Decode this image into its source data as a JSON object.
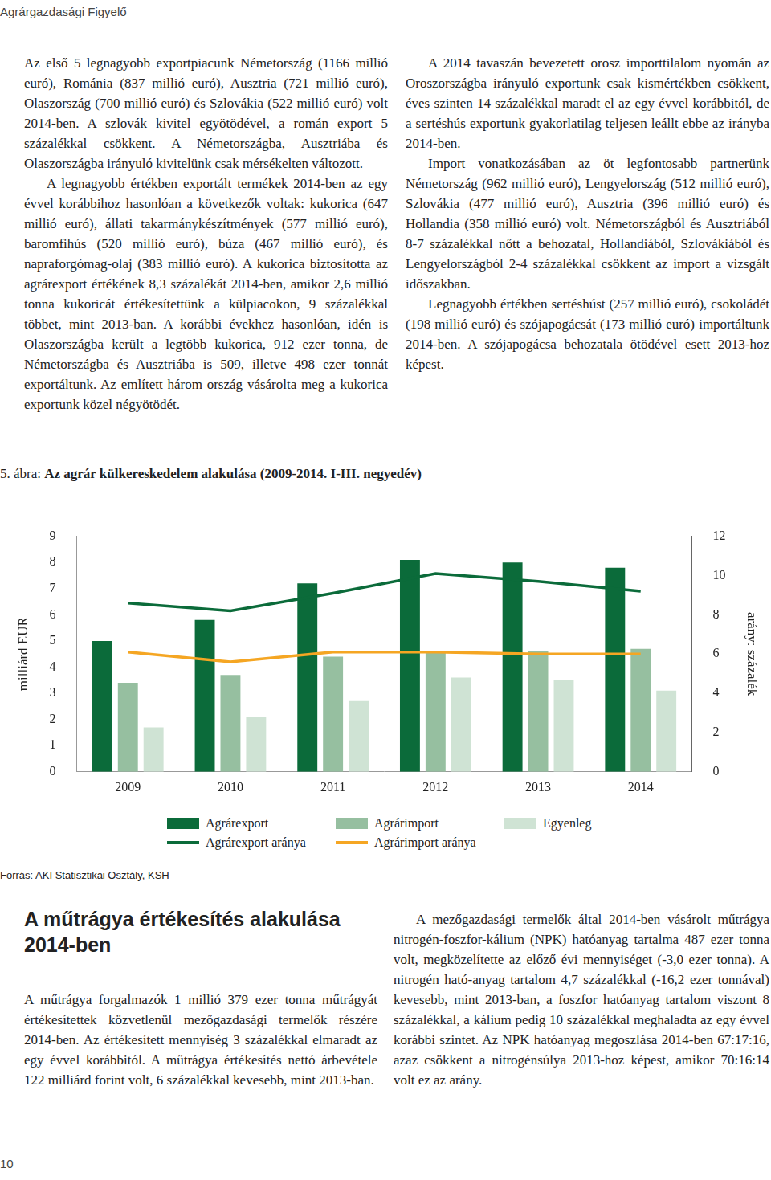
{
  "header": "Agrárgazdasági Figyelő",
  "top_text": {
    "paragraphs": [
      "Az első 5 legnagyobb exportpiacunk Németország (1166 millió euró), Románia (837 millió euró), Ausztria (721 millió euró), Olaszország (700 millió euró) és Szlovákia (522 millió euró) volt 2014-ben. A szlovák kivitel egyötödével, a román export 5 százalékkal csökkent. A Németországba, Ausztriába és Olaszországba irányuló kivitelünk csak mérsékelten változott.",
      "A legnagyobb értékben exportált termékek 2014-ben az egy évvel korábbihoz hasonlóan a következők voltak: kukorica (647 millió euró), állati takarmánykészítmények (577 millió euró), baromfihús (520 millió euró), búza (467 millió euró), és napraforgómag-olaj (383 millió euró). A kukorica biztosította az agrárexport értékének 8,3 százalékát 2014-ben, amikor 2,6 millió tonna kukoricát értékesítettünk a külpiacokon, 9 százalékkal többet, mint 2013-ban. A korábbi évekhez hasonlóan, idén is Olaszországba került a legtöbb kukorica, 912 ezer tonna, de Németországba és Ausztriába is 509, illetve 498 ezer tonnát exportáltunk. Az említett három ország vásárolta meg a kukorica exportunk közel négyötödét.",
      "A 2014 tavaszán bevezetett orosz importtilalom nyomán az Oroszországba irányuló exportunk csak kismértékben csökkent, éves szinten 14 százalékkal maradt el az egy évvel korábbitól, de a sertéshús exportunk gyakorlatilag teljesen leállt ebbe az irányba 2014-ben.",
      "Import vonatkozásában az öt legfontosabb partnerünk Németország (962 millió euró), Lengyelország (512 millió euró), Szlovákia (477 millió euró), Ausztria (396 millió euró) és Hollandia (358 millió euró) volt. Németországból és Ausztriából 8-7 százalékkal nőtt a behozatal, Hollandiából, Szlovákiából és Lengyelországból 2-4 százalékkal csökkent az import a vizsgált időszakban.",
      "Legnagyobb értékben sertéshúst (257 millió euró), csokoládét (198 millió euró) és szójapogácsát (173 millió euró) importáltunk 2014-ben. A szójapogácsa behozatala ötödével esett 2013-hoz képest."
    ]
  },
  "figure": {
    "number": "5. ábra:",
    "caption": "Az agrár külkereskedelem alakulása (2009-2014. I-III. negyedév)",
    "source": "Forrás: AKI Statisztikai Osztály, KSH"
  },
  "chart_data": {
    "type": "bar",
    "categories": [
      "2009",
      "2010",
      "2011",
      "2012",
      "2013",
      "2014"
    ],
    "ylabel": "milliárd EUR",
    "y2label": "arány: százalék",
    "ylim": [
      0,
      9
    ],
    "yticks": [
      0,
      1,
      2,
      3,
      4,
      5,
      6,
      7,
      8,
      9
    ],
    "y2lim": [
      0,
      12
    ],
    "y2ticks": [
      0,
      2,
      4,
      6,
      8,
      10,
      12
    ],
    "grid": false,
    "legend": "bottom",
    "series": [
      {
        "name": "Agrárexport",
        "type": "bar",
        "color": "#0b6b3a",
        "values": [
          5.0,
          5.8,
          7.2,
          8.1,
          8.0,
          7.8
        ]
      },
      {
        "name": "Agrárimport",
        "type": "bar",
        "color": "#96bfa0",
        "values": [
          3.4,
          3.7,
          4.4,
          4.6,
          4.6,
          4.7
        ]
      },
      {
        "name": "Egyenleg",
        "type": "bar",
        "color": "#cfe3d4",
        "values": [
          1.7,
          2.1,
          2.7,
          3.6,
          3.5,
          3.1
        ]
      },
      {
        "name": "Agrárexport aránya",
        "type": "line",
        "axis": "y2",
        "color": "#0b6b3a",
        "values": [
          8.6,
          8.2,
          9.1,
          10.1,
          9.7,
          9.2
        ]
      },
      {
        "name": "Agrárimport aránya",
        "type": "line",
        "axis": "y2",
        "color": "#f5a623",
        "values": [
          6.1,
          5.6,
          6.1,
          6.1,
          6.0,
          6.0
        ]
      }
    ]
  },
  "section": {
    "title": "A műtrágya értékesítés alakulása 2014-ben",
    "left_paragraph": "A műtrágya forgalmazók 1 millió 379 ezer tonna műtrágyát értékesítettek közvetlenül mezőgazdasági termelők részére 2014-ben. Az értékesített mennyiség 3 százalékkal elmaradt az egy évvel korábbitól. A műtrágya értékesítés nettó árbevétele 122 milliárd forint volt, 6 százalékkal kevesebb, mint 2013-ban.",
    "right_paragraph": "A mezőgazdasági termelők által 2014-ben vásárolt műtrágya nitrogén-foszfor-kálium (NPK) hatóanyag tartalma 487 ezer tonna volt, megközelítette az előző évi mennyiséget (-3,0 ezer tonna). A nitrogén ható-anyag tartalom 4,7 százalékkal (-16,2 ezer tonnával) kevesebb, mint 2013-ban, a foszfor hatóanyag tartalom viszont 8 százalékkal, a kálium pedig 10 százalékkal meghaladta az egy évvel korábbi szintet. Az NPK hatóanyag megoszlása 2014-ben 67:17:16, azaz csökkent a nitrogénsúlya 2013-hoz képest, amikor 70:16:14 volt ez az arány."
  },
  "page_number": "10"
}
